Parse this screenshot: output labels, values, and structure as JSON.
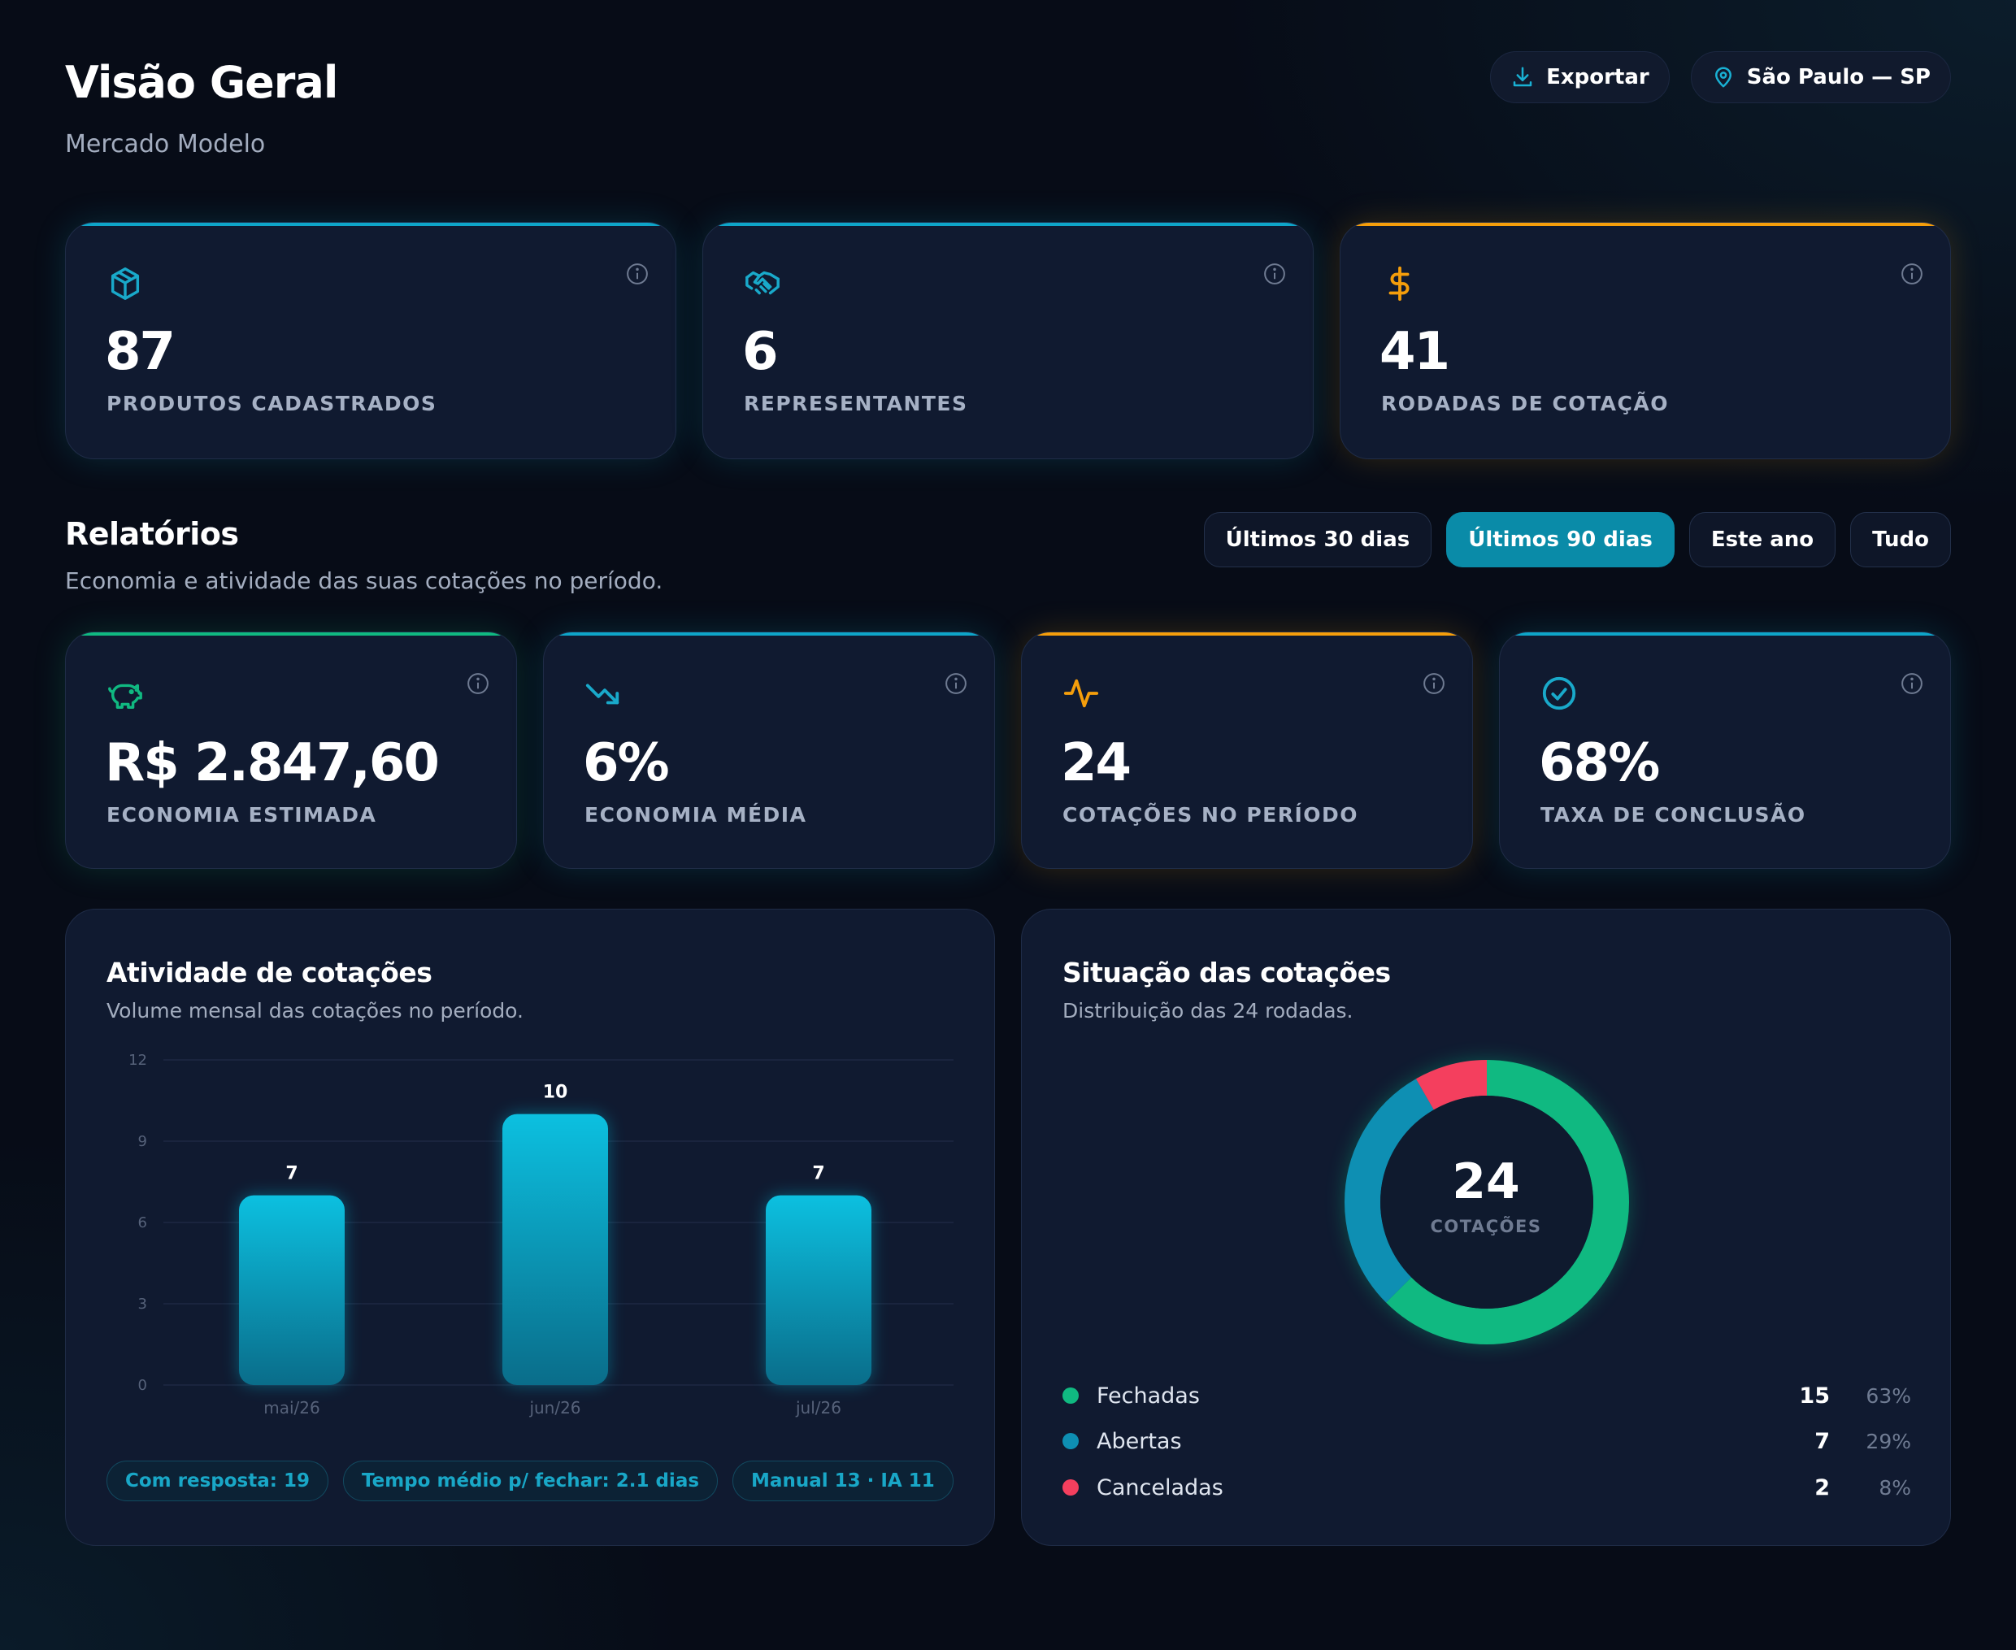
{
  "header": {
    "title": "Visão Geral",
    "subtitle": "Mercado Modelo",
    "export_label": "Exportar",
    "location_label": "São Paulo — SP"
  },
  "summary_cards": [
    {
      "value": "87",
      "label": "PRODUTOS CADASTRADOS",
      "icon": "box-icon",
      "accent": "#0ea5c9"
    },
    {
      "value": "6",
      "label": "REPRESENTANTES",
      "icon": "handshake-icon",
      "accent": "#0ea5c9"
    },
    {
      "value": "41",
      "label": "RODADAS DE COTAÇÃO",
      "icon": "dollar-icon",
      "accent": "#f59e0b"
    }
  ],
  "reports": {
    "title": "Relatórios",
    "subtitle": "Economia e atividade das suas cotações no período.",
    "filters": [
      "Últimos 30 dias",
      "Últimos 90 dias",
      "Este ano",
      "Tudo"
    ],
    "active_filter": "Últimos 90 dias"
  },
  "kpi_cards": [
    {
      "value": "R$ 2.847,60",
      "label": "ECONOMIA ESTIMADA",
      "icon": "piggy-bank-icon",
      "accent": "#10b981"
    },
    {
      "value": "6%",
      "label": "ECONOMIA MÉDIA",
      "icon": "trending-down-icon",
      "accent": "#0ea5c9"
    },
    {
      "value": "24",
      "label": "COTAÇÕES NO PERÍODO",
      "icon": "activity-icon",
      "accent": "#f59e0b"
    },
    {
      "value": "68%",
      "label": "TAXA DE CONCLUSÃO",
      "icon": "check-circle-icon",
      "accent": "#0ea5c9"
    }
  ],
  "activity": {
    "title": "Atividade de cotações",
    "subtitle": "Volume mensal das cotações no período.",
    "tags": [
      "Com resposta: 19",
      "Tempo médio p/ fechar: 2.1 dias",
      "Manual 13 · IA 11"
    ]
  },
  "status": {
    "title": "Situação das cotações",
    "subtitle": "Distribuição das 24 rodadas.",
    "center_value": "24",
    "center_label": "COTAÇÕES",
    "legend": [
      {
        "label": "Fechadas",
        "count": "15",
        "pct": "63%",
        "color": "#10b981"
      },
      {
        "label": "Abertas",
        "count": "7",
        "pct": "29%",
        "color": "#0e8fb3"
      },
      {
        "label": "Canceladas",
        "count": "2",
        "pct": "8%",
        "color": "#f43f5e"
      }
    ]
  },
  "chart_data": [
    {
      "type": "bar",
      "categories": [
        "mai/26",
        "jun/26",
        "jul/26"
      ],
      "values": [
        7,
        10,
        7
      ],
      "ylim": [
        0,
        12
      ],
      "yticks": [
        "0",
        "3",
        "6",
        "9",
        "12"
      ],
      "grid": true,
      "color": "#0aa9c9"
    },
    {
      "type": "pie",
      "categories": [
        "Fechadas",
        "Abertas",
        "Canceladas"
      ],
      "values": [
        15,
        7,
        2
      ],
      "colors": [
        "#10b981",
        "#0e8fb3",
        "#f43f5e"
      ]
    }
  ]
}
